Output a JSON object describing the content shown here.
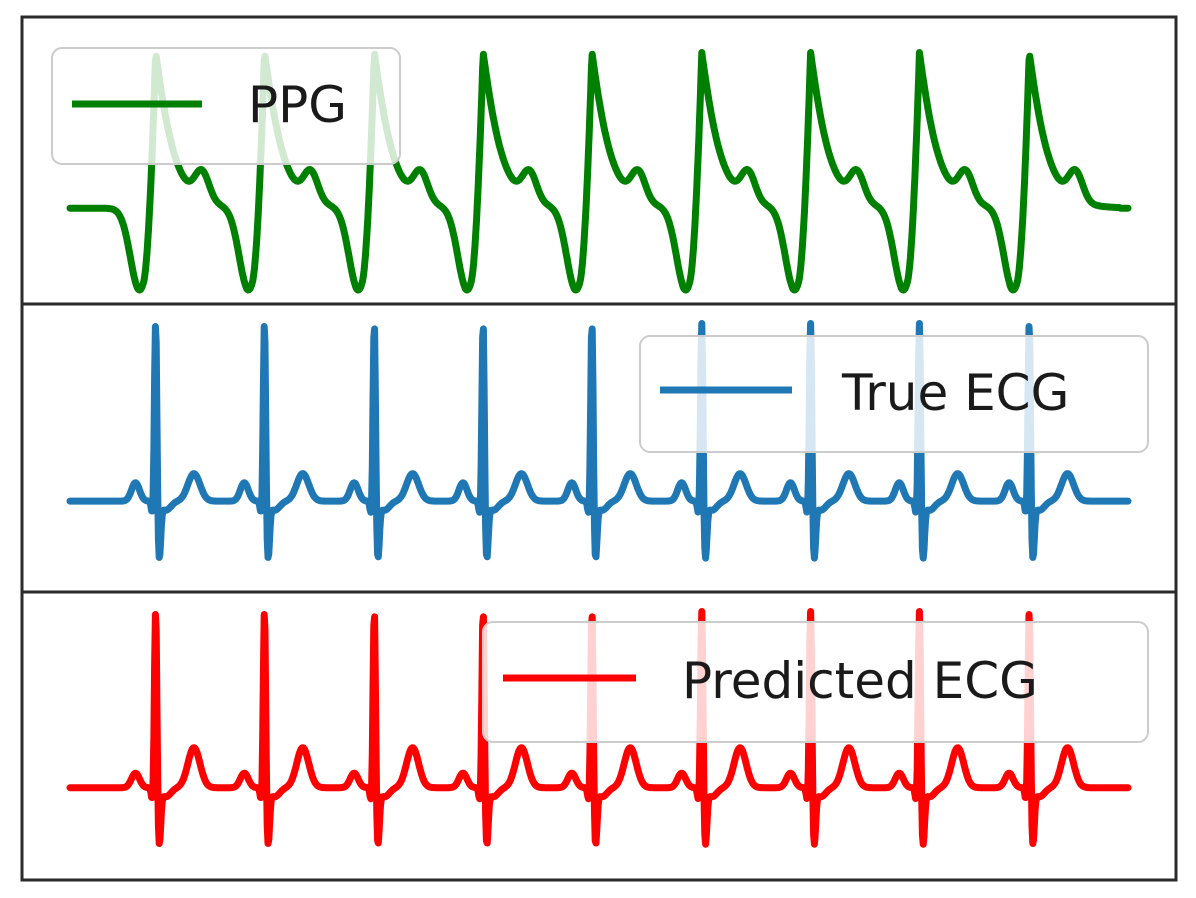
{
  "chart_data": [
    {
      "type": "line",
      "legend": {
        "location": "upper-left",
        "entries": [
          {
            "label": "PPG",
            "color": "#008000"
          }
        ]
      },
      "grid": false,
      "series": [
        {
          "name": "PPG",
          "color": "#008000",
          "beat_times": [
            0.85,
            1.93,
            3.02,
            4.1,
            5.18,
            6.27,
            7.35,
            8.43,
            9.52
          ],
          "x_start": 0.0,
          "x_end": 10.5,
          "pulse_peak": 1.0,
          "trough": 0.0,
          "dicrotic_notch": 0.35
        }
      ]
    },
    {
      "type": "line",
      "legend": {
        "location": "upper-right",
        "entries": [
          {
            "label": "True ECG",
            "color": "#1f77b4"
          }
        ]
      },
      "grid": false,
      "series": [
        {
          "name": "True ECG",
          "color": "#1f77b4",
          "r_peak_times": [
            0.85,
            1.93,
            3.02,
            4.1,
            5.18,
            6.27,
            7.35,
            8.43,
            9.52
          ],
          "x_start": 0.0,
          "x_end": 10.5,
          "r_amplitude": 1.0,
          "baseline": 0.0,
          "s_amplitude": -0.3,
          "t_amplitude": 0.15,
          "p_amplitude": 0.1
        }
      ]
    },
    {
      "type": "line",
      "legend": {
        "location": "upper-right",
        "entries": [
          {
            "label": "Predicted ECG",
            "color": "#ff0000"
          }
        ]
      },
      "grid": false,
      "series": [
        {
          "name": "Predicted ECG",
          "color": "#ff0000",
          "r_peak_times": [
            0.85,
            1.93,
            3.02,
            4.1,
            5.18,
            6.27,
            7.35,
            8.43,
            9.52
          ],
          "x_start": 0.0,
          "x_end": 10.5,
          "r_amplitude": 1.0,
          "baseline": 0.0,
          "s_amplitude": -0.3,
          "t_amplitude": 0.22,
          "p_amplitude": 0.08
        }
      ]
    }
  ]
}
